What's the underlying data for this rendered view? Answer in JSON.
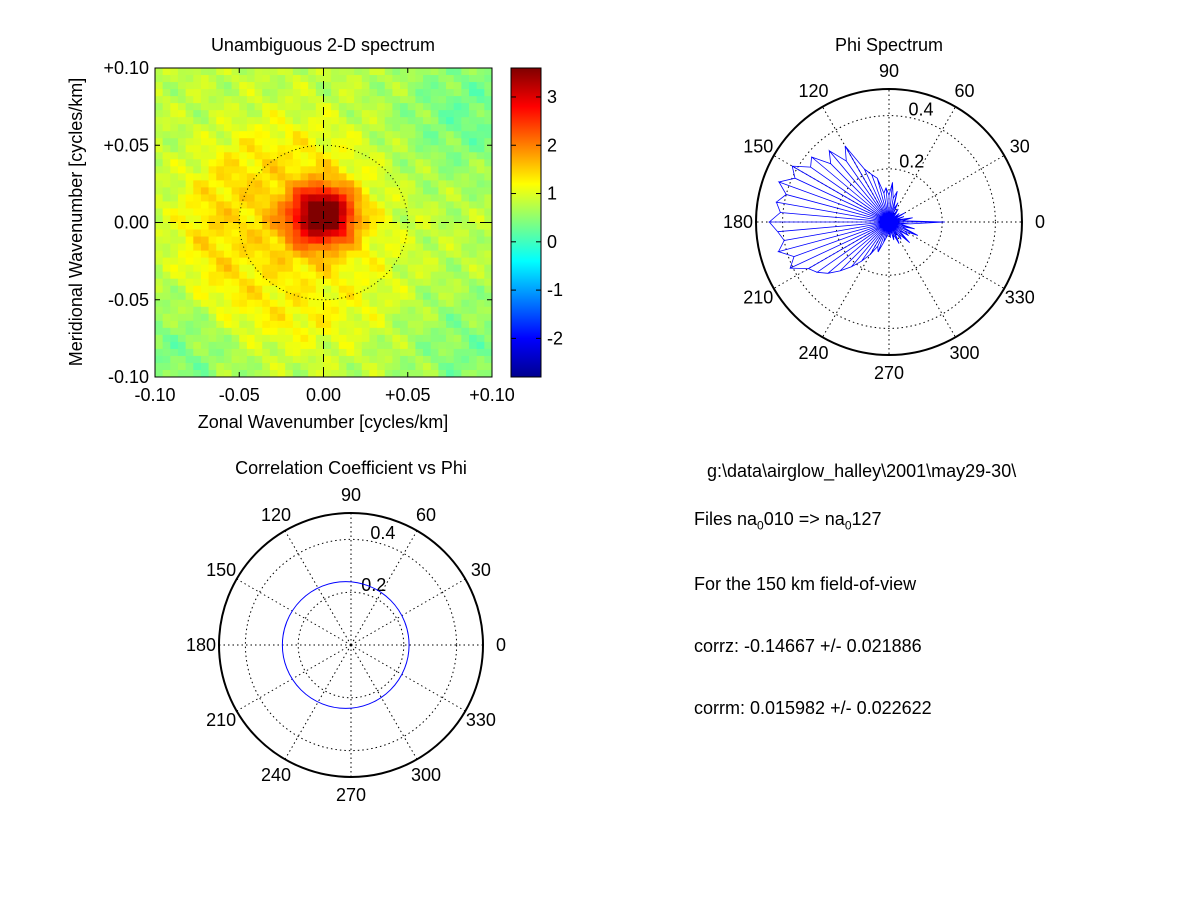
{
  "figure": {
    "background": "#ffffff",
    "info": {
      "path": "g:\\data\\airglow_halley\\2001\\may29-30\\",
      "files_prefix": "Files  na",
      "file_sub_1": "0",
      "file_mid": "010  =>  na",
      "file_sub_2": "0",
      "file_end": "127",
      "fov": "For the  150 km field-of-view",
      "corrz": "corrz: -0.14667 +/- 0.021886",
      "corrm": "corrm: 0.015982 +/- 0.022622"
    }
  },
  "chart_data": [
    {
      "type": "heatmap",
      "title": "Unambiguous 2-D spectrum",
      "xlabel": "Zonal Wavenumber [cycles/km]",
      "ylabel": "Meridional Wavenumber [cycles/km]",
      "xlim": [
        -0.1,
        0.1
      ],
      "ylim": [
        -0.1,
        0.1
      ],
      "xticks": [
        "-0.10",
        "-0.05",
        "0.00",
        "+0.05",
        "+0.10"
      ],
      "yticks": [
        "+0.10",
        "+0.05",
        "0.00",
        "-0.05",
        "-0.10"
      ],
      "colorbar": {
        "range": [
          -2.8,
          3.6
        ],
        "ticks": [
          "3",
          "2",
          "1",
          "0",
          "-1",
          "-2"
        ],
        "colormap": "jet"
      },
      "features": {
        "background_level": 0.8,
        "peak": {
          "x": 0.0,
          "y": 0.005,
          "value": 3.6
        },
        "reference_circle_radius": 0.05,
        "crosshair": true
      },
      "grid": false
    },
    {
      "type": "polar-line",
      "title": "Phi Spectrum",
      "angle_ticks": [
        "0",
        "30",
        "60",
        "90",
        "120",
        "150",
        "180",
        "210",
        "240",
        "270",
        "300",
        "330"
      ],
      "radial_ticks": [
        "0.2",
        "0.4"
      ],
      "rmax": 0.5,
      "series_color": "#0000ff",
      "series": [
        {
          "angle_deg": [
            0,
            5,
            10,
            15,
            20,
            25,
            30,
            35,
            40,
            45,
            50,
            55,
            60,
            65,
            70,
            75,
            80,
            85,
            90,
            95,
            100,
            105,
            110,
            115,
            120,
            125,
            130,
            135,
            140,
            145,
            150,
            155,
            160,
            165,
            170,
            175,
            180,
            185,
            190,
            195,
            200,
            205,
            210,
            215,
            220,
            225,
            230,
            235,
            240,
            245,
            250,
            255,
            260,
            265,
            270,
            275,
            280,
            285,
            290,
            295,
            300,
            305,
            310,
            315,
            320,
            325,
            330,
            335,
            340,
            345,
            350,
            355
          ],
          "r": [
            0.21,
            0.05,
            0.09,
            0.03,
            0.06,
            0.02,
            0.07,
            0.03,
            0.05,
            0.02,
            0.04,
            0.06,
            0.02,
            0.08,
            0.05,
            0.12,
            0.09,
            0.15,
            0.1,
            0.13,
            0.11,
            0.17,
            0.19,
            0.22,
            0.33,
            0.28,
            0.35,
            0.31,
            0.38,
            0.36,
            0.42,
            0.39,
            0.44,
            0.4,
            0.43,
            0.41,
            0.45,
            0.42,
            0.4,
            0.43,
            0.38,
            0.41,
            0.35,
            0.33,
            0.3,
            0.26,
            0.22,
            0.18,
            0.14,
            0.1,
            0.12,
            0.08,
            0.06,
            0.05,
            0.04,
            0.06,
            0.03,
            0.07,
            0.05,
            0.09,
            0.04,
            0.08,
            0.06,
            0.11,
            0.05,
            0.09,
            0.07,
            0.12,
            0.05,
            0.1,
            0.04,
            0.08
          ]
        }
      ]
    },
    {
      "type": "polar-line",
      "title": "Correlation Coefficient vs Phi",
      "angle_ticks": [
        "0",
        "30",
        "60",
        "90",
        "120",
        "150",
        "180",
        "210",
        "240",
        "270",
        "300",
        "330"
      ],
      "radial_ticks": [
        "0.2",
        "0.4"
      ],
      "rmax": 0.5,
      "series_color": "#0000ff",
      "series": [
        {
          "shape": "circle",
          "center": [
            -0.02,
            0.0
          ],
          "radius": 0.24
        }
      ]
    }
  ]
}
